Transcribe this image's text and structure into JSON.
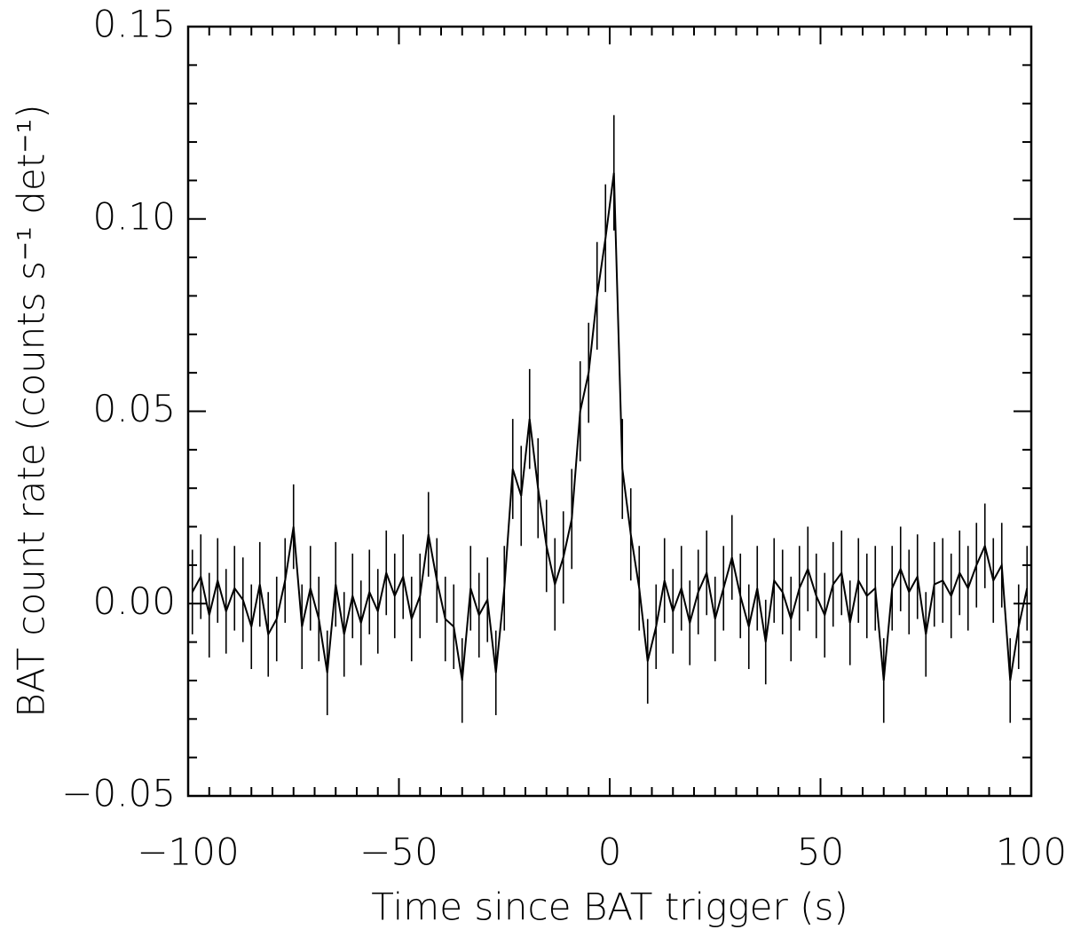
{
  "chart_data": {
    "type": "line",
    "xlabel": "Time since BAT trigger (s)",
    "ylabel": "BAT count rate (counts s⁻¹ det⁻¹)",
    "xlim": [
      -100,
      100
    ],
    "ylim": [
      -0.05,
      0.15
    ],
    "xticks": [
      {
        "value": -100,
        "label": "−100"
      },
      {
        "value": -50,
        "label": "−50"
      },
      0,
      50,
      100
    ],
    "yticks": [
      {
        "value": -0.05,
        "label": "−0.05"
      },
      {
        "value": 0,
        "label": "0.00"
      },
      {
        "value": 0.05,
        "label": "0.05"
      },
      {
        "value": 0.1,
        "label": "0.10"
      },
      {
        "value": 0.15,
        "label": "0.15"
      }
    ],
    "xminorticks": [
      -95,
      -90,
      -85,
      -80,
      -75,
      -70,
      -65,
      -60,
      -55,
      -45,
      -40,
      -35,
      -30,
      -25,
      -20,
      -15,
      -10,
      -5,
      5,
      10,
      15,
      20,
      25,
      30,
      35,
      40,
      45,
      55,
      60,
      65,
      70,
      75,
      80,
      85,
      90,
      95
    ],
    "yminorticks": [
      -0.04,
      -0.03,
      -0.02,
      -0.01,
      0.01,
      0.02,
      0.03,
      0.04,
      0.06,
      0.07,
      0.08,
      0.09,
      0.11,
      0.12,
      0.13,
      0.14
    ],
    "x": [
      -99,
      -97,
      -95,
      -93,
      -91,
      -89,
      -87,
      -85,
      -83,
      -81,
      -79,
      -77,
      -75,
      -73,
      -71,
      -69,
      -67,
      -65,
      -63,
      -61,
      -59,
      -57,
      -55,
      -53,
      -51,
      -49,
      -47,
      -45,
      -43,
      -41,
      -39,
      -37,
      -35,
      -33,
      -31,
      -29,
      -27,
      -25,
      -23,
      -21,
      -19,
      -17,
      -15,
      -13,
      -11,
      -9,
      -7,
      -5,
      -3,
      -1,
      1,
      3,
      5,
      7,
      9,
      11,
      13,
      15,
      17,
      19,
      21,
      23,
      25,
      27,
      29,
      31,
      33,
      35,
      37,
      39,
      41,
      43,
      45,
      47,
      49,
      51,
      53,
      55,
      57,
      59,
      61,
      63,
      65,
      67,
      69,
      71,
      73,
      75,
      77,
      79,
      81,
      83,
      85,
      87,
      89,
      91,
      93,
      95,
      97,
      99
    ],
    "series": [
      {
        "color": "#000000",
        "values": [
          0.003,
          0.007,
          -0.003,
          0.006,
          -0.002,
          0.004,
          0.001,
          -0.006,
          0.005,
          -0.008,
          -0.004,
          0.006,
          0.02,
          -0.006,
          0.004,
          -0.004,
          -0.018,
          0.005,
          -0.008,
          0.002,
          -0.005,
          0.003,
          -0.002,
          0.008,
          0.002,
          0.007,
          -0.004,
          0.002,
          0.018,
          0.006,
          -0.004,
          -0.006,
          -0.02,
          0.004,
          -0.003,
          0.001,
          -0.018,
          0.004,
          0.035,
          0.028,
          0.048,
          0.03,
          0.015,
          0.005,
          0.012,
          0.022,
          0.05,
          0.06,
          0.08,
          0.095,
          0.112,
          0.035,
          0.018,
          0.004,
          -0.015,
          -0.006,
          0.006,
          -0.002,
          0.004,
          -0.005,
          0.003,
          0.008,
          -0.004,
          0.004,
          0.012,
          0.002,
          -0.006,
          0.004,
          -0.01,
          0.006,
          0.003,
          -0.004,
          0.004,
          0.009,
          0.002,
          -0.003,
          0.005,
          0.008,
          -0.005,
          0.006,
          0.002,
          0.004,
          -0.02,
          0.004,
          0.009,
          0.003,
          0.007,
          -0.008,
          0.005,
          0.006,
          0.002,
          0.008,
          0.004,
          0.01,
          0.015,
          0.006,
          0.01,
          -0.02,
          -0.006,
          0.004
        ],
        "errors": [
          0.011,
          0.011,
          0.011,
          0.011,
          0.011,
          0.011,
          0.011,
          0.011,
          0.011,
          0.011,
          0.011,
          0.011,
          0.011,
          0.011,
          0.011,
          0.011,
          0.011,
          0.011,
          0.011,
          0.011,
          0.011,
          0.011,
          0.011,
          0.011,
          0.011,
          0.011,
          0.011,
          0.011,
          0.011,
          0.011,
          0.011,
          0.011,
          0.011,
          0.011,
          0.011,
          0.011,
          0.011,
          0.011,
          0.013,
          0.013,
          0.013,
          0.013,
          0.012,
          0.012,
          0.012,
          0.013,
          0.013,
          0.013,
          0.014,
          0.014,
          0.015,
          0.013,
          0.012,
          0.011,
          0.011,
          0.011,
          0.011,
          0.011,
          0.011,
          0.011,
          0.011,
          0.011,
          0.011,
          0.011,
          0.011,
          0.011,
          0.011,
          0.011,
          0.011,
          0.011,
          0.011,
          0.011,
          0.011,
          0.011,
          0.011,
          0.011,
          0.011,
          0.011,
          0.011,
          0.011,
          0.011,
          0.011,
          0.011,
          0.011,
          0.011,
          0.011,
          0.011,
          0.011,
          0.011,
          0.011,
          0.011,
          0.011,
          0.011,
          0.011,
          0.011,
          0.011,
          0.011,
          0.011,
          0.011,
          0.011
        ]
      }
    ]
  }
}
